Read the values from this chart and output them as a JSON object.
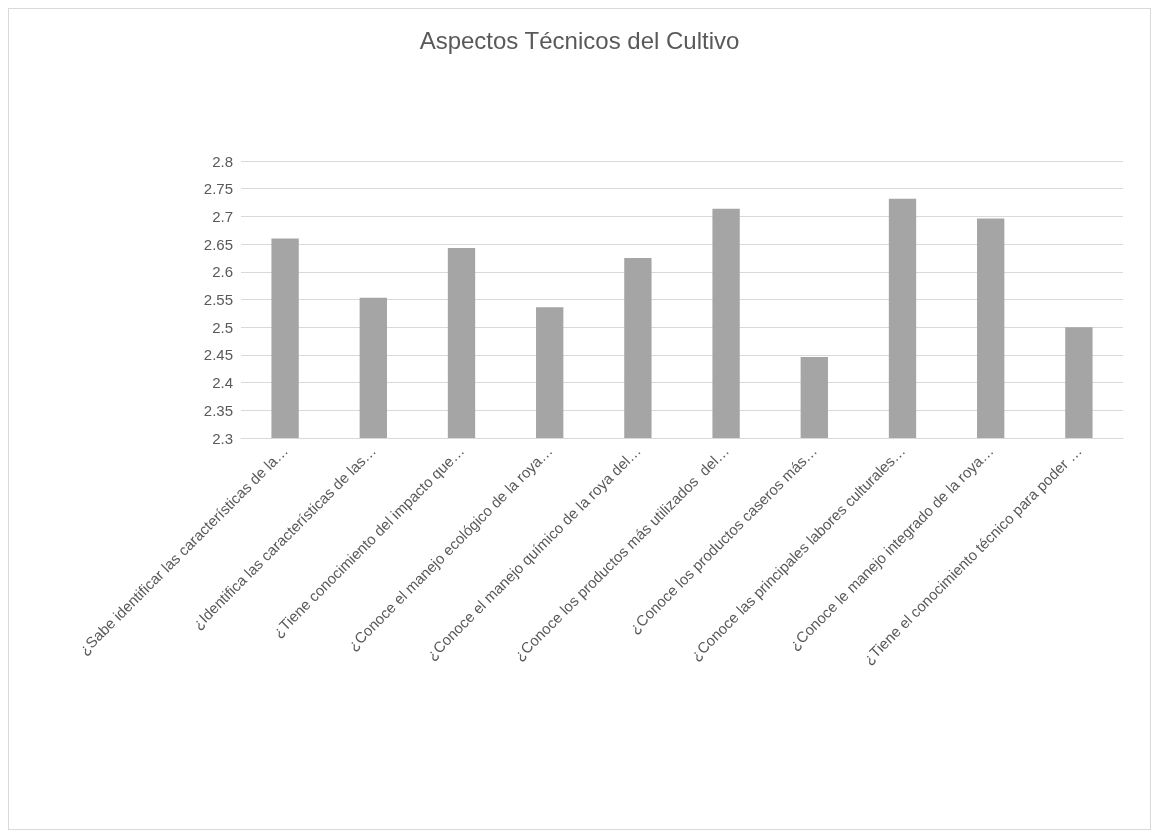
{
  "chart_data": {
    "type": "bar",
    "title": "Aspectos Técnicos del Cultivo",
    "categories": [
      "¿Sabe identificar las características de la…",
      "¿Identifica las características de las…",
      "¿Tiene conocimiento del impacto que…",
      "¿Conoce el manejo ecológico de la roya…",
      "¿Conoce el manejo químico de la roya del…",
      "¿Conoce los productos más utilizados  del…",
      "¿Conoce los productos caseros más…",
      "¿Conoce las principales labores culturales…",
      "¿Conoce le manejo integrado de la roya…",
      "¿Tiene el conocimiento técnico para poder …"
    ],
    "values": [
      2.66,
      2.553,
      2.643,
      2.536,
      2.625,
      2.714,
      2.446,
      2.732,
      2.696,
      2.5
    ],
    "color": "#a5a5a5",
    "ylim": [
      2.3,
      2.8
    ],
    "yticks": [
      2.3,
      2.35,
      2.4,
      2.45,
      2.5,
      2.55,
      2.6,
      2.65,
      2.7,
      2.75,
      2.8
    ],
    "grid": true
  }
}
